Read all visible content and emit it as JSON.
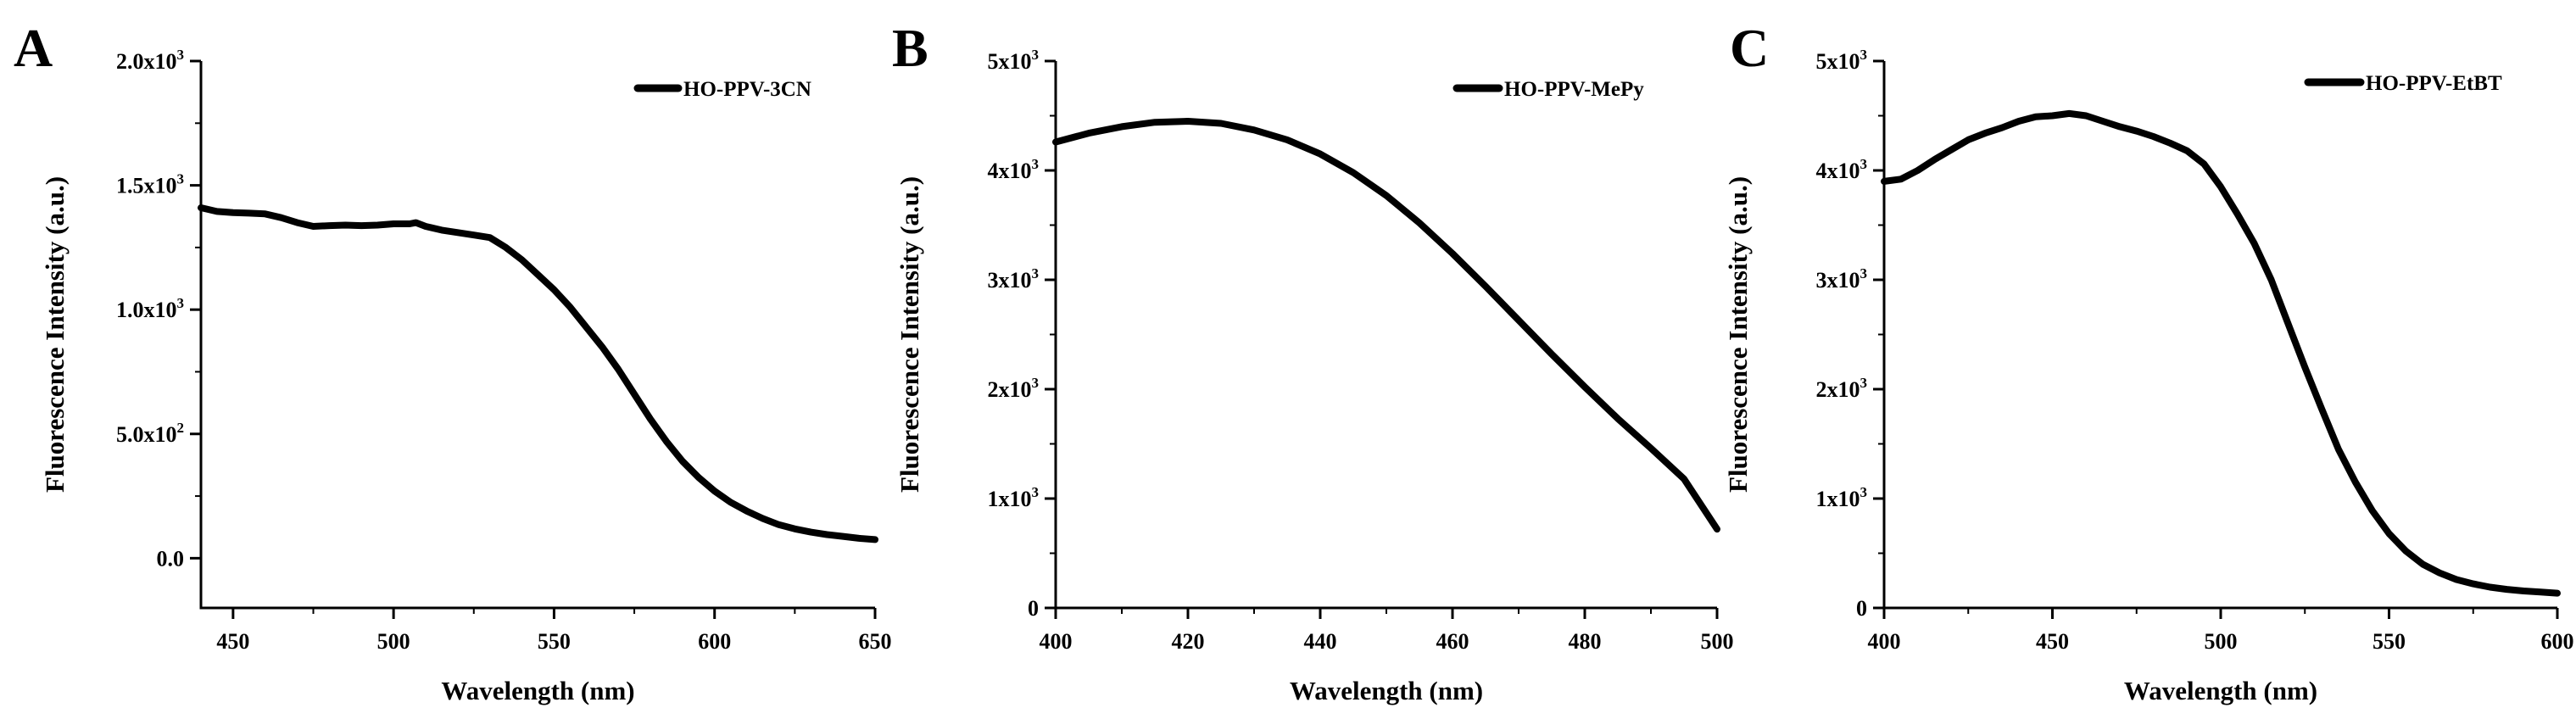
{
  "chart_data": [
    {
      "panel": "A",
      "type": "line",
      "xlabel": "Wavelength (nm)",
      "ylabel": "Fluorescence Intensity (a.u.)",
      "xlim": [
        440,
        650
      ],
      "ylim": [
        -200,
        2000
      ],
      "x_ticks": [
        450,
        500,
        550,
        600,
        650
      ],
      "x_tick_labels": [
        "450",
        "500",
        "550",
        "600",
        "650"
      ],
      "y_ticks": [
        0,
        500,
        1000,
        1500,
        2000
      ],
      "y_tick_labels": [
        {
          "base": "0.0",
          "exp": ""
        },
        {
          "base": "5.0x10",
          "exp": "2"
        },
        {
          "base": "1.0x10",
          "exp": "3"
        },
        {
          "base": "1.5x10",
          "exp": "3"
        },
        {
          "base": "2.0x10",
          "exp": "3"
        }
      ],
      "legend": "top-right",
      "series": [
        {
          "name": "HO-PPV-3CN",
          "x": [
            440,
            445,
            450,
            455,
            460,
            465,
            470,
            475,
            480,
            485,
            490,
            495,
            500,
            505,
            507,
            510,
            515,
            520,
            525,
            530,
            535,
            540,
            545,
            550,
            555,
            560,
            565,
            570,
            575,
            580,
            585,
            590,
            595,
            600,
            605,
            610,
            615,
            620,
            625,
            630,
            635,
            640,
            645,
            650
          ],
          "y": [
            1410,
            1395,
            1390,
            1388,
            1385,
            1370,
            1350,
            1335,
            1338,
            1340,
            1338,
            1340,
            1345,
            1345,
            1350,
            1335,
            1320,
            1310,
            1300,
            1290,
            1250,
            1200,
            1140,
            1080,
            1010,
            930,
            850,
            760,
            660,
            560,
            470,
            390,
            325,
            270,
            225,
            190,
            160,
            135,
            118,
            105,
            95,
            88,
            80,
            75
          ]
        }
      ]
    },
    {
      "panel": "B",
      "type": "line",
      "xlabel": "Wavelength (nm)",
      "ylabel": "Fluorescence Intensity (a.u.)",
      "xlim": [
        400,
        500
      ],
      "ylim": [
        0,
        5000
      ],
      "x_ticks": [
        400,
        420,
        440,
        460,
        480,
        500
      ],
      "x_tick_labels": [
        "400",
        "420",
        "440",
        "460",
        "480",
        "500"
      ],
      "y_ticks": [
        0,
        1000,
        2000,
        3000,
        4000,
        5000
      ],
      "y_tick_labels": [
        {
          "base": "0",
          "exp": ""
        },
        {
          "base": "1x10",
          "exp": "3"
        },
        {
          "base": "2x10",
          "exp": "3"
        },
        {
          "base": "3x10",
          "exp": "3"
        },
        {
          "base": "4x10",
          "exp": "3"
        },
        {
          "base": "5x10",
          "exp": "3"
        }
      ],
      "legend": "top-right",
      "series": [
        {
          "name": "HO-PPV-MePy",
          "x": [
            400,
            405,
            410,
            415,
            420,
            425,
            430,
            435,
            440,
            445,
            450,
            455,
            460,
            465,
            470,
            475,
            480,
            485,
            490,
            495,
            500
          ],
          "y": [
            4260,
            4340,
            4400,
            4440,
            4450,
            4430,
            4370,
            4280,
            4150,
            3980,
            3770,
            3520,
            3240,
            2940,
            2630,
            2320,
            2020,
            1730,
            1460,
            1180,
            720
          ]
        }
      ]
    },
    {
      "panel": "C",
      "type": "line",
      "xlabel": "Wavelength (nm)",
      "ylabel": "Fluorescence Intensity (a.u.)",
      "xlim": [
        400,
        600
      ],
      "ylim": [
        0,
        5000
      ],
      "x_ticks": [
        400,
        450,
        500,
        550,
        600
      ],
      "x_tick_labels": [
        "400",
        "450",
        "500",
        "550",
        "600"
      ],
      "y_ticks": [
        0,
        1000,
        2000,
        3000,
        4000,
        5000
      ],
      "y_tick_labels": [
        {
          "base": "0",
          "exp": ""
        },
        {
          "base": "1x10",
          "exp": "3"
        },
        {
          "base": "2x10",
          "exp": "3"
        },
        {
          "base": "3x10",
          "exp": "3"
        },
        {
          "base": "4x10",
          "exp": "3"
        },
        {
          "base": "5x10",
          "exp": "3"
        }
      ],
      "legend": "top-right",
      "series": [
        {
          "name": "HO-PPV-EtBT",
          "x": [
            400,
            405,
            410,
            415,
            420,
            425,
            430,
            435,
            440,
            445,
            450,
            455,
            460,
            465,
            470,
            475,
            480,
            485,
            490,
            495,
            500,
            505,
            510,
            515,
            520,
            525,
            530,
            535,
            540,
            545,
            550,
            555,
            560,
            565,
            570,
            575,
            580,
            585,
            590,
            595,
            600
          ],
          "y": [
            3900,
            3920,
            4000,
            4100,
            4190,
            4280,
            4340,
            4390,
            4450,
            4490,
            4500,
            4520,
            4500,
            4450,
            4400,
            4360,
            4310,
            4250,
            4180,
            4060,
            3850,
            3600,
            3330,
            3000,
            2600,
            2200,
            1820,
            1450,
            1150,
            890,
            680,
            520,
            400,
            320,
            260,
            220,
            190,
            170,
            155,
            145,
            135
          ]
        }
      ]
    }
  ]
}
